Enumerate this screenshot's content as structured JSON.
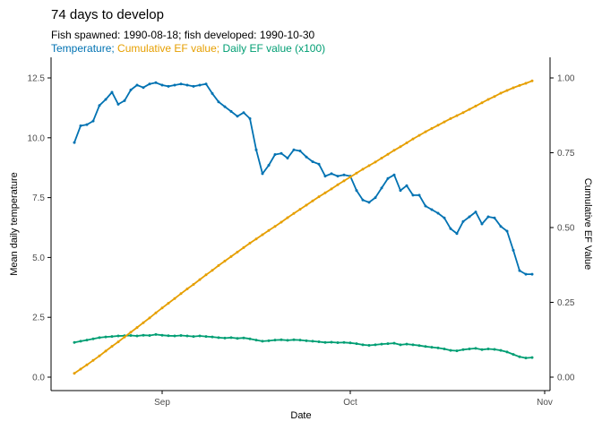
{
  "title": "74 days to develop",
  "subtitle": "Fish spawned: 1990-08-18; fish developed: 1990-10-30",
  "legend": {
    "separator": "; ",
    "position": "subtitle-line",
    "items": [
      {
        "label": "Temperature",
        "color": "#0072B2"
      },
      {
        "label": "Cumulative EF value",
        "color": "#E69F00"
      },
      {
        "label": "Daily EF value (x100)",
        "color": "#009E73"
      }
    ]
  },
  "axes": {
    "x": {
      "title": "Date",
      "tick_labels": [
        "Sep",
        "Oct",
        "Nov"
      ]
    },
    "y_left": {
      "title": "Mean daily temperature",
      "tick_labels": [
        "0.0",
        "2.5",
        "5.0",
        "7.5",
        "10.0",
        "12.5"
      ],
      "tick_values": [
        0,
        2.5,
        5,
        7.5,
        10,
        12.5
      ]
    },
    "y_right": {
      "title": "Cumulative EF Value",
      "tick_labels": [
        "0.00",
        "0.25",
        "0.50",
        "0.75",
        "1.00"
      ],
      "tick_values": [
        0,
        0.25,
        0.5,
        0.75,
        1.0
      ]
    }
  },
  "style": {
    "tick_label_color": "#4d4d4d",
    "axis_line_color": "#000000",
    "background": "#ffffff"
  },
  "chart_data": {
    "type": "line",
    "title": "74 days to develop",
    "subtitle": "Fish spawned: 1990-08-18; fish developed: 1990-10-30",
    "x_start_date": "1990-08-18",
    "x_end_date": "1990-10-30",
    "n_days": 74,
    "xlabel": "Date",
    "ylabel_left": "Mean daily temperature",
    "ylabel_right": "Cumulative EF Value",
    "ylim_left": [
      0,
      12.5
    ],
    "ylim_right": [
      0,
      1.0
    ],
    "grid": false,
    "legend_position": "colored-subtitle",
    "x_ticks": [
      {
        "label": "Sep",
        "day_index": 14
      },
      {
        "label": "Oct",
        "day_index": 44
      },
      {
        "label": "Nov",
        "day_index": 75
      }
    ],
    "series": [
      {
        "name": "Temperature",
        "axis": "left",
        "color": "#0072B2",
        "marker": "point",
        "values": [
          9.8,
          10.5,
          10.55,
          10.7,
          11.35,
          11.6,
          11.9,
          11.4,
          11.55,
          12.0,
          12.2,
          12.1,
          12.25,
          12.3,
          12.2,
          12.15,
          12.2,
          12.25,
          12.2,
          12.15,
          12.2,
          12.25,
          11.85,
          11.5,
          11.3,
          11.1,
          10.9,
          11.05,
          10.8,
          9.5,
          8.5,
          8.85,
          9.3,
          9.35,
          9.15,
          9.5,
          9.45,
          9.2,
          9.0,
          8.9,
          8.4,
          8.5,
          8.4,
          8.45,
          8.4,
          7.8,
          7.4,
          7.3,
          7.5,
          7.9,
          8.3,
          8.45,
          7.8,
          8.0,
          7.6,
          7.6,
          7.15,
          7.0,
          6.85,
          6.65,
          6.2,
          6.0,
          6.5,
          6.7,
          6.9,
          6.4,
          6.7,
          6.65,
          6.3,
          6.1,
          5.3,
          4.45,
          4.3,
          4.3
        ]
      },
      {
        "name": "Daily EF value (x100)",
        "axis": "left",
        "color": "#009E73",
        "marker": "point",
        "values": [
          1.45,
          1.5,
          1.55,
          1.6,
          1.65,
          1.68,
          1.7,
          1.72,
          1.73,
          1.74,
          1.72,
          1.75,
          1.74,
          1.78,
          1.75,
          1.73,
          1.72,
          1.74,
          1.72,
          1.7,
          1.72,
          1.7,
          1.68,
          1.65,
          1.63,
          1.65,
          1.62,
          1.64,
          1.6,
          1.55,
          1.5,
          1.52,
          1.55,
          1.56,
          1.54,
          1.56,
          1.55,
          1.52,
          1.5,
          1.48,
          1.45,
          1.46,
          1.44,
          1.45,
          1.43,
          1.4,
          1.35,
          1.33,
          1.35,
          1.38,
          1.4,
          1.42,
          1.35,
          1.38,
          1.35,
          1.32,
          1.28,
          1.25,
          1.22,
          1.18,
          1.12,
          1.1,
          1.15,
          1.18,
          1.2,
          1.15,
          1.18,
          1.16,
          1.12,
          1.05,
          0.95,
          0.85,
          0.8,
          0.82
        ]
      },
      {
        "name": "Cumulative EF value",
        "axis": "right",
        "color": "#E69F00",
        "marker": "point",
        "values": [
          0.013,
          0.027,
          0.041,
          0.056,
          0.071,
          0.087,
          0.103,
          0.118,
          0.134,
          0.15,
          0.166,
          0.182,
          0.198,
          0.215,
          0.231,
          0.247,
          0.263,
          0.279,
          0.295,
          0.31,
          0.326,
          0.342,
          0.357,
          0.373,
          0.388,
          0.403,
          0.418,
          0.433,
          0.448,
          0.462,
          0.476,
          0.49,
          0.504,
          0.518,
          0.533,
          0.547,
          0.561,
          0.575,
          0.589,
          0.603,
          0.616,
          0.629,
          0.643,
          0.656,
          0.669,
          0.682,
          0.695,
          0.707,
          0.719,
          0.732,
          0.745,
          0.758,
          0.77,
          0.783,
          0.796,
          0.808,
          0.82,
          0.831,
          0.842,
          0.853,
          0.864,
          0.874,
          0.884,
          0.895,
          0.906,
          0.917,
          0.928,
          0.938,
          0.949,
          0.958,
          0.967,
          0.975,
          0.982,
          0.99
        ]
      }
    ]
  }
}
